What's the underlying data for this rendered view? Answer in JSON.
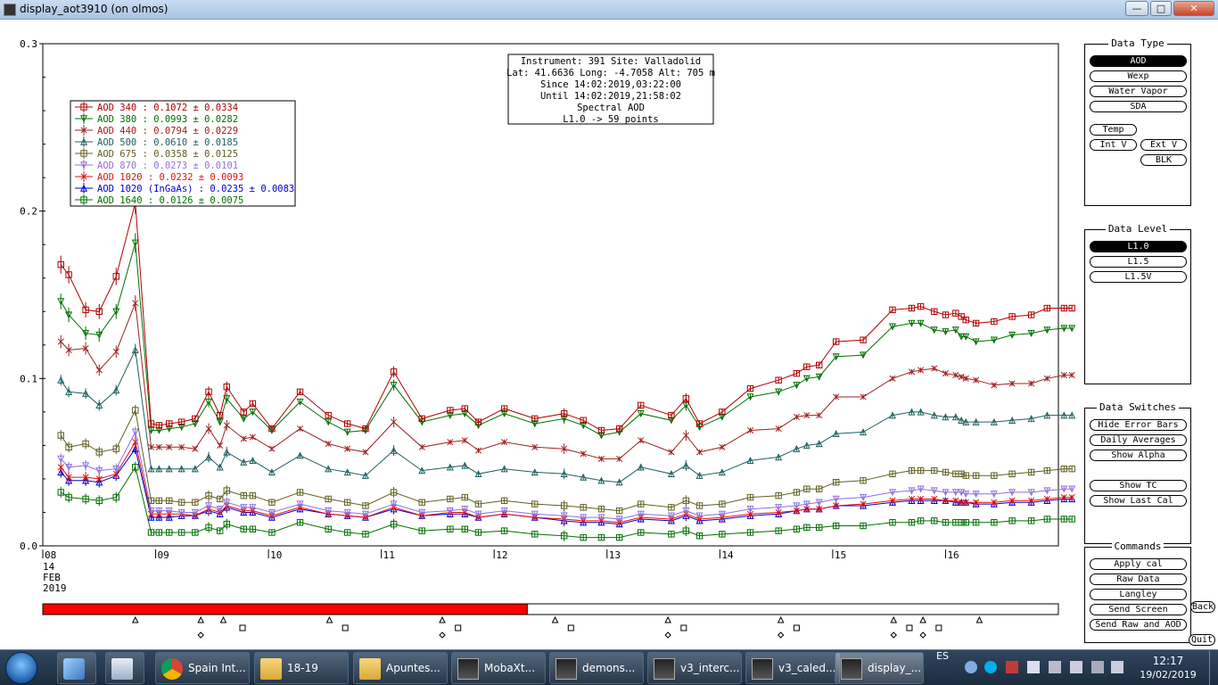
{
  "window": {
    "title": "display_aot3910 (on olmos)",
    "buttons": {
      "minimize": "—",
      "maximize": "□",
      "close": "✕"
    }
  },
  "chart_data": {
    "type": "line",
    "ylim": [
      0,
      0.3
    ],
    "yticks": [
      0.0,
      0.1,
      0.2,
      0.3
    ],
    "ytick_labels": [
      "0.0",
      "0.1",
      "0.2",
      "0.3"
    ],
    "xlim": [
      8,
      17
    ],
    "xticks": [
      8,
      9,
      10,
      11,
      12,
      13,
      14,
      15,
      16
    ],
    "xtick_labels": [
      "08",
      "09",
      "10",
      "11",
      "12",
      "13",
      "14",
      "15",
      "16"
    ],
    "x_sub_label": [
      "14",
      "FEB",
      "2019"
    ],
    "info_box": [
      "Instrument: 391 Site: Valladolid",
      "Lat: 41.6636 Long: -4.7058 Alt: 705 m",
      "Since 14:02:2019,03:22:00",
      "Until 14:02:2019,21:58:02",
      "Spectral AOD",
      "L1.0 -> 59 points"
    ],
    "x": [
      8.16,
      8.23,
      8.38,
      8.5,
      8.65,
      8.82,
      8.96,
      9.03,
      9.12,
      9.23,
      9.35,
      9.47,
      9.57,
      9.63,
      9.78,
      9.86,
      10.03,
      10.28,
      10.53,
      10.7,
      10.86,
      11.11,
      11.36,
      11.61,
      11.74,
      11.86,
      12.09,
      12.36,
      12.62,
      12.79,
      12.95,
      13.11,
      13.3,
      13.57,
      13.7,
      13.82,
      14.02,
      14.27,
      14.52,
      14.68,
      14.77,
      14.88,
      15.03,
      15.27,
      15.53,
      15.7,
      15.78,
      15.9,
      16.0,
      16.09,
      16.14,
      16.18,
      16.27,
      16.43,
      16.59,
      16.76,
      16.9,
      17.05,
      17.12
    ],
    "series": [
      {
        "name": "AOD 340",
        "legend": "AOD 340  : 0.1072 ± 0.0334",
        "color": "#b00000",
        "marker": "square",
        "values": [
          0.168,
          0.162,
          0.141,
          0.14,
          0.161,
          0.205,
          0.073,
          0.072,
          0.073,
          0.074,
          0.076,
          0.092,
          0.078,
          0.095,
          0.08,
          0.085,
          0.07,
          0.092,
          0.078,
          0.073,
          0.07,
          0.104,
          0.076,
          0.081,
          0.082,
          0.074,
          0.082,
          0.076,
          0.079,
          0.075,
          0.069,
          0.07,
          0.084,
          0.078,
          0.088,
          0.073,
          0.08,
          0.094,
          0.099,
          0.103,
          0.107,
          0.108,
          0.122,
          0.123,
          0.141,
          0.142,
          0.143,
          0.14,
          0.138,
          0.139,
          0.137,
          0.135,
          0.133,
          0.134,
          0.137,
          0.138,
          0.142,
          0.142,
          0.142
        ]
      },
      {
        "name": "AOD 380",
        "legend": "AOD 380  : 0.0993 ± 0.0282",
        "color": "#007000",
        "marker": "tri-down",
        "values": [
          0.146,
          0.138,
          0.127,
          0.126,
          0.14,
          0.181,
          0.069,
          0.069,
          0.07,
          0.071,
          0.073,
          0.086,
          0.074,
          0.088,
          0.076,
          0.08,
          0.069,
          0.086,
          0.074,
          0.068,
          0.069,
          0.096,
          0.074,
          0.078,
          0.079,
          0.072,
          0.079,
          0.073,
          0.076,
          0.072,
          0.066,
          0.068,
          0.079,
          0.075,
          0.084,
          0.071,
          0.077,
          0.089,
          0.092,
          0.096,
          0.1,
          0.101,
          0.113,
          0.114,
          0.131,
          0.133,
          0.133,
          0.129,
          0.128,
          0.129,
          0.125,
          0.125,
          0.122,
          0.123,
          0.126,
          0.127,
          0.129,
          0.13,
          0.13
        ]
      },
      {
        "name": "AOD 440",
        "legend": "AOD 440  : 0.0794 ± 0.0229",
        "color": "#a02020",
        "marker": "x",
        "values": [
          0.122,
          0.117,
          0.118,
          0.105,
          0.116,
          0.145,
          0.059,
          0.059,
          0.059,
          0.059,
          0.058,
          0.07,
          0.06,
          0.072,
          0.064,
          0.065,
          0.058,
          0.07,
          0.061,
          0.058,
          0.056,
          0.074,
          0.059,
          0.062,
          0.063,
          0.057,
          0.062,
          0.059,
          0.058,
          0.055,
          0.052,
          0.052,
          0.063,
          0.056,
          0.066,
          0.056,
          0.059,
          0.069,
          0.07,
          0.077,
          0.078,
          0.078,
          0.089,
          0.089,
          0.1,
          0.104,
          0.105,
          0.106,
          0.103,
          0.102,
          0.101,
          0.1,
          0.099,
          0.096,
          0.097,
          0.097,
          0.1,
          0.102,
          0.102
        ]
      },
      {
        "name": "AOD 500",
        "legend": "AOD 500  : 0.0610 ± 0.0185",
        "color": "#206060",
        "marker": "tri-up",
        "values": [
          0.099,
          0.092,
          0.091,
          0.084,
          0.093,
          0.117,
          0.046,
          0.046,
          0.046,
          0.046,
          0.046,
          0.053,
          0.047,
          0.056,
          0.05,
          0.051,
          0.044,
          0.054,
          0.046,
          0.044,
          0.042,
          0.057,
          0.045,
          0.047,
          0.048,
          0.043,
          0.046,
          0.044,
          0.043,
          0.041,
          0.039,
          0.038,
          0.047,
          0.043,
          0.048,
          0.042,
          0.044,
          0.051,
          0.053,
          0.058,
          0.06,
          0.061,
          0.067,
          0.068,
          0.078,
          0.08,
          0.08,
          0.078,
          0.077,
          0.077,
          0.075,
          0.074,
          0.074,
          0.074,
          0.075,
          0.076,
          0.078,
          0.078,
          0.078
        ]
      },
      {
        "name": "AOD 675",
        "legend": "AOD 675  : 0.0358 ± 0.0125",
        "color": "#606020",
        "marker": "square",
        "values": [
          0.066,
          0.059,
          0.061,
          0.056,
          0.058,
          0.081,
          0.027,
          0.027,
          0.027,
          0.026,
          0.026,
          0.03,
          0.028,
          0.033,
          0.03,
          0.03,
          0.026,
          0.032,
          0.028,
          0.026,
          0.024,
          0.032,
          0.026,
          0.028,
          0.029,
          0.025,
          0.027,
          0.025,
          0.024,
          0.023,
          0.022,
          0.021,
          0.025,
          0.023,
          0.027,
          0.024,
          0.025,
          0.029,
          0.03,
          0.032,
          0.034,
          0.034,
          0.038,
          0.039,
          0.043,
          0.045,
          0.045,
          0.045,
          0.044,
          0.043,
          0.043,
          0.042,
          0.042,
          0.042,
          0.043,
          0.044,
          0.045,
          0.046,
          0.046
        ]
      },
      {
        "name": "AOD 870",
        "legend": "AOD 870  : 0.0273 ± 0.0101",
        "color": "#9070e0",
        "marker": "tri-down",
        "values": [
          0.052,
          0.047,
          0.048,
          0.045,
          0.046,
          0.068,
          0.021,
          0.021,
          0.021,
          0.02,
          0.02,
          0.024,
          0.022,
          0.026,
          0.023,
          0.023,
          0.02,
          0.025,
          0.021,
          0.02,
          0.019,
          0.025,
          0.02,
          0.021,
          0.022,
          0.019,
          0.021,
          0.019,
          0.018,
          0.017,
          0.017,
          0.016,
          0.019,
          0.018,
          0.021,
          0.018,
          0.019,
          0.022,
          0.023,
          0.024,
          0.025,
          0.026,
          0.028,
          0.029,
          0.032,
          0.033,
          0.034,
          0.033,
          0.032,
          0.032,
          0.032,
          0.031,
          0.031,
          0.031,
          0.032,
          0.032,
          0.033,
          0.034,
          0.034
        ]
      },
      {
        "name": "AOD 1020",
        "legend": "AOD 1020  : 0.0232 ± 0.0093",
        "color": "#e01010",
        "marker": "x",
        "values": [
          0.047,
          0.041,
          0.041,
          0.04,
          0.043,
          0.062,
          0.019,
          0.019,
          0.019,
          0.019,
          0.018,
          0.022,
          0.02,
          0.024,
          0.021,
          0.021,
          0.018,
          0.023,
          0.019,
          0.018,
          0.017,
          0.023,
          0.018,
          0.02,
          0.02,
          0.017,
          0.019,
          0.017,
          0.016,
          0.015,
          0.015,
          0.014,
          0.017,
          0.016,
          0.019,
          0.016,
          0.017,
          0.019,
          0.02,
          0.021,
          0.022,
          0.022,
          0.024,
          0.025,
          0.027,
          0.028,
          0.028,
          0.028,
          0.027,
          0.027,
          0.026,
          0.026,
          0.026,
          0.026,
          0.027,
          0.027,
          0.028,
          0.029,
          0.029
        ]
      },
      {
        "name": "AOD 1020 (InGaAs)",
        "legend": "AOD 1020 (InGaAs)  : 0.0235 ± 0.0083",
        "color": "#0000d0",
        "marker": "tri-up",
        "values": [
          0.044,
          0.039,
          0.039,
          0.038,
          0.042,
          0.058,
          0.017,
          0.017,
          0.017,
          0.018,
          0.018,
          0.021,
          0.019,
          0.023,
          0.02,
          0.02,
          0.017,
          0.022,
          0.019,
          0.018,
          0.017,
          0.022,
          0.018,
          0.019,
          0.019,
          0.017,
          0.019,
          0.017,
          0.015,
          0.014,
          0.014,
          0.013,
          0.016,
          0.015,
          0.018,
          0.015,
          0.016,
          0.018,
          0.019,
          0.021,
          0.022,
          0.022,
          0.024,
          0.024,
          0.026,
          0.027,
          0.027,
          0.027,
          0.027,
          0.026,
          0.026,
          0.026,
          0.025,
          0.025,
          0.026,
          0.026,
          0.027,
          0.028,
          0.028
        ]
      },
      {
        "name": "AOD 1640",
        "legend": "AOD 1640  : 0.0126 ± 0.0075",
        "color": "#007000",
        "marker": "square",
        "values": [
          0.032,
          0.029,
          0.028,
          0.027,
          0.029,
          0.047,
          0.008,
          0.008,
          0.008,
          0.008,
          0.008,
          0.011,
          0.009,
          0.013,
          0.01,
          0.01,
          0.008,
          0.014,
          0.01,
          0.008,
          0.007,
          0.013,
          0.009,
          0.01,
          0.01,
          0.008,
          0.009,
          0.007,
          0.006,
          0.005,
          0.005,
          0.005,
          0.008,
          0.007,
          0.009,
          0.006,
          0.007,
          0.008,
          0.009,
          0.01,
          0.011,
          0.011,
          0.012,
          0.012,
          0.014,
          0.014,
          0.015,
          0.015,
          0.014,
          0.014,
          0.014,
          0.014,
          0.014,
          0.014,
          0.015,
          0.015,
          0.016,
          0.016,
          0.016
        ]
      }
    ],
    "error_bar_days": [
      8.16,
      8.23,
      8.38,
      8.5,
      8.65,
      8.82,
      9.47,
      9.63,
      11.11,
      12.62,
      13.7
    ]
  },
  "timeline": {
    "progress": 0.477,
    "triangle_days": [
      8.82,
      9.4,
      9.6,
      10.54,
      11.54,
      12.54,
      13.54,
      14.54,
      15.54,
      15.8,
      16.3
    ],
    "diamond_days": [
      9.4,
      11.54,
      13.54,
      14.54,
      15.54,
      15.8
    ],
    "square_days": [
      9.77,
      10.68,
      11.68,
      12.68,
      13.68,
      14.68,
      15.68,
      15.94
    ]
  },
  "panels": {
    "data_type": {
      "title": "Data Type",
      "aod": "AOD",
      "wexp": "Wexp",
      "water_vapor": "Water Vapor",
      "sda": "SDA",
      "temp": "Temp",
      "int_v": "Int V",
      "ext_v": "Ext V",
      "blk": "BLK"
    },
    "data_level": {
      "title": "Data Level",
      "l10": "L1.0",
      "l15": "L1.5",
      "l15v": "L1.5V"
    },
    "data_switches": {
      "title": "Data Switches",
      "hide_error_bars": "Hide Error Bars",
      "daily_averages": "Daily Averages",
      "show_alpha": "Show Alpha",
      "show_tc": "Show TC",
      "show_last_cal": "Show Last Cal"
    },
    "commands": {
      "title": "Commands",
      "apply_cal": "Apply cal",
      "raw_data": "Raw Data",
      "langley": "Langley",
      "send_screen": "Send Screen",
      "send_raw_and_aod": "Send Raw and AOD"
    },
    "back": "Back",
    "quit": "Quit"
  },
  "taskbar": {
    "items": [
      {
        "label": "Spain Int...",
        "icon": "chrome-icon"
      },
      {
        "label": "18-19",
        "icon": "folder-icon"
      },
      {
        "label": "Apuntes...",
        "icon": "folder-icon"
      },
      {
        "label": "MobaXt...",
        "icon": "terminal-icon"
      },
      {
        "label": "demons...",
        "icon": "terminal-icon"
      },
      {
        "label": "v3_interc...",
        "icon": "terminal-icon"
      },
      {
        "label": "v3_caled...",
        "icon": "terminal-icon"
      },
      {
        "label": "display_...",
        "icon": "terminal-icon"
      }
    ],
    "language": "ES",
    "time": "12:17",
    "date": "19/02/2019"
  }
}
